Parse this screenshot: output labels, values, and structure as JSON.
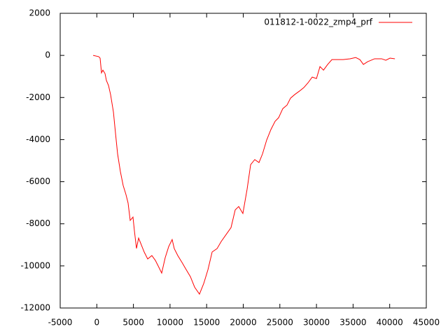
{
  "chart_data": {
    "type": "line",
    "x": [
      -500,
      260,
      450,
      640,
      830,
      1120,
      1310,
      1600,
      1880,
      2270,
      2550,
      2840,
      3220,
      3600,
      3990,
      4270,
      4560,
      4940,
      5140,
      5420,
      5710,
      6090,
      6470,
      6950,
      7520,
      8000,
      8380,
      8860,
      9340,
      9820,
      10290,
      10580,
      11060,
      11640,
      12210,
      12780,
      13360,
      14020,
      14600,
      15180,
      15750,
      16420,
      16990,
      17660,
      18330,
      18900,
      19380,
      19950,
      20530,
      21010,
      21570,
      22150,
      22630,
      23200,
      23780,
      24350,
      24830,
      25400,
      25980,
      26460,
      27030,
      27700,
      28270,
      28850,
      29420,
      30000,
      30480,
      30960,
      31530,
      32110,
      32680,
      33640,
      34590,
      35360,
      35930,
      36410,
      36980,
      37940,
      38900,
      39470,
      40040,
      40710
    ],
    "series": [
      {
        "name": "011812-1-0022_zmp4_prf",
        "color": "#ff0000",
        "values": [
          0,
          -60,
          -130,
          -830,
          -700,
          -860,
          -1190,
          -1430,
          -1860,
          -2690,
          -3690,
          -4680,
          -5520,
          -6180,
          -6620,
          -7010,
          -7840,
          -7680,
          -8350,
          -9170,
          -8680,
          -9010,
          -9340,
          -9670,
          -9510,
          -9740,
          -10000,
          -10340,
          -9610,
          -9080,
          -8750,
          -9180,
          -9510,
          -9840,
          -10180,
          -10510,
          -11010,
          -11340,
          -10840,
          -10180,
          -9340,
          -9180,
          -8840,
          -8510,
          -8180,
          -7340,
          -7180,
          -7510,
          -6350,
          -5190,
          -4950,
          -5090,
          -4680,
          -4020,
          -3520,
          -3130,
          -2960,
          -2530,
          -2360,
          -2030,
          -1860,
          -1690,
          -1530,
          -1300,
          -1030,
          -1100,
          -530,
          -700,
          -430,
          -200,
          -200,
          -200,
          -160,
          -100,
          -200,
          -430,
          -300,
          -160,
          -160,
          -230,
          -130,
          -160
        ]
      }
    ],
    "xlim": [
      -5000,
      45000
    ],
    "xticks": [
      -5000,
      0,
      5000,
      10000,
      15000,
      20000,
      25000,
      30000,
      35000,
      40000,
      45000
    ],
    "ylim": [
      -12000,
      2000
    ],
    "yticks": [
      -12000,
      -10000,
      -8000,
      -6000,
      -4000,
      -2000,
      0,
      2000
    ],
    "legend": "top-right"
  }
}
